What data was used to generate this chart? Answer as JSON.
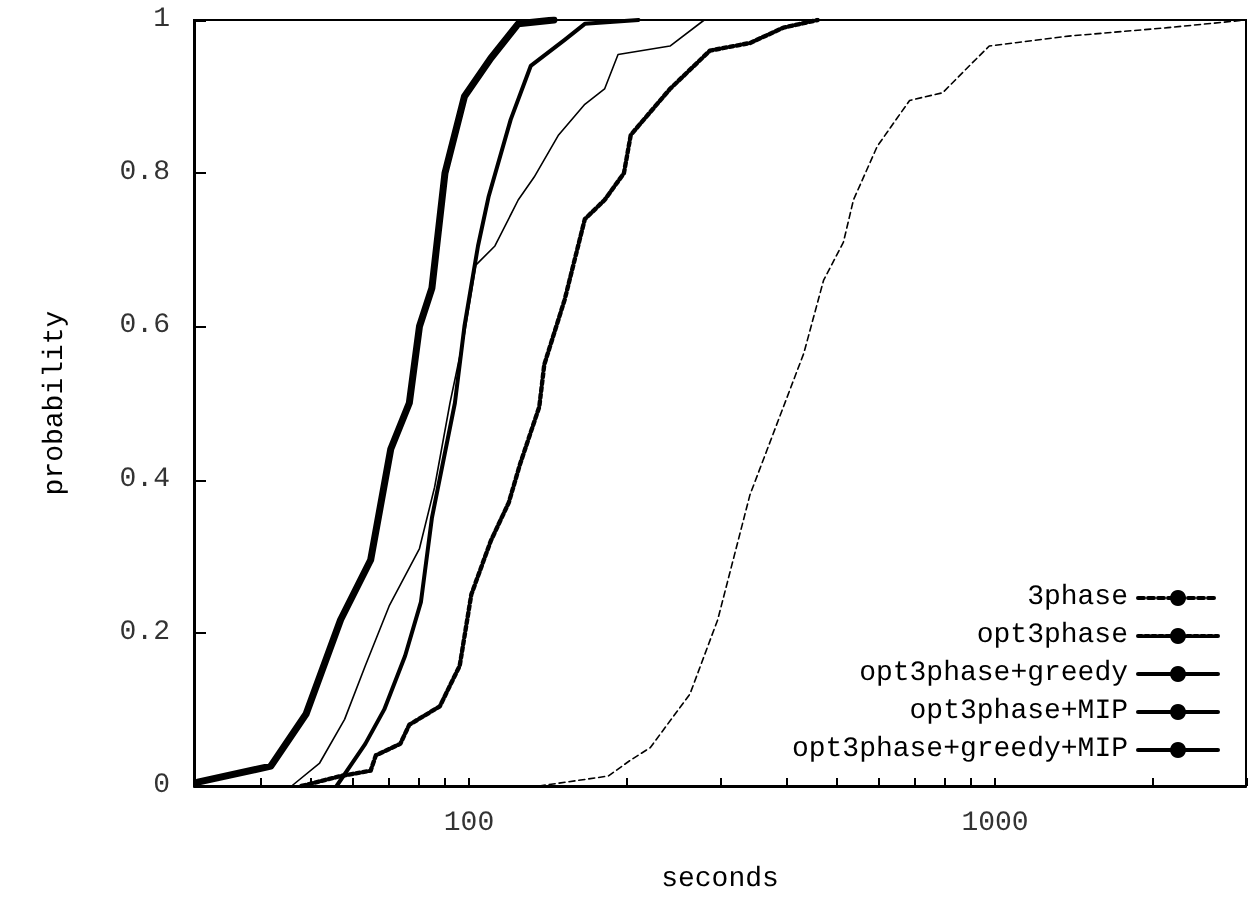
{
  "chart_data": {
    "type": "line",
    "xlabel": "seconds",
    "ylabel": "probability",
    "log": "x",
    "grid": false,
    "legend": "bottom right",
    "marker": "none",
    "xlim": [
      30,
      3000
    ],
    "ylim": [
      0,
      1
    ],
    "xticks": [
      {
        "value": 30,
        "label": null
      },
      {
        "value": 40,
        "label": null
      },
      {
        "value": 50,
        "label": null
      },
      {
        "value": 60,
        "label": null
      },
      {
        "value": 70,
        "label": null
      },
      {
        "value": 80,
        "label": null
      },
      {
        "value": 90,
        "label": null
      },
      100,
      {
        "value": 200,
        "label": null
      },
      {
        "value": 300,
        "label": null
      },
      {
        "value": 400,
        "label": null
      },
      {
        "value": 500,
        "label": null
      },
      {
        "value": 600,
        "label": null
      },
      {
        "value": 700,
        "label": null
      },
      {
        "value": 800,
        "label": null
      },
      {
        "value": 900,
        "label": null
      },
      1000,
      {
        "value": 2000,
        "label": null
      },
      {
        "value": 3000,
        "label": null
      }
    ],
    "yticks": [
      0,
      0.2,
      0.4,
      0.6,
      0.8,
      1
    ],
    "series": [
      {
        "name": "3phase",
        "color": "#000000",
        "line_style": "dashed",
        "x": [
          136,
          184,
          203,
          221,
          263,
          297,
          342,
          396,
          433,
          472,
          515,
          538,
          597,
          688,
          795,
          893,
          975,
          1380,
          2130,
          3000
        ],
        "values": [
          0,
          0.013,
          0.034,
          0.05,
          0.12,
          0.217,
          0.38,
          0.495,
          0.565,
          0.66,
          0.71,
          0.765,
          0.835,
          0.895,
          0.905,
          0.94,
          0.966,
          0.979,
          0.99,
          1
        ]
      },
      {
        "name": "opt3phase",
        "color": "#000000",
        "line_style": "dotted",
        "x": [
          48,
          57,
          65,
          66.5,
          74,
          77,
          88,
          96,
          101,
          110,
          119,
          125,
          136,
          139,
          152,
          166,
          181,
          197,
          203,
          241,
          287,
          342,
          396,
          460
        ],
        "values": [
          0,
          0.013,
          0.02,
          0.04,
          0.055,
          0.08,
          0.104,
          0.157,
          0.25,
          0.32,
          0.37,
          0.42,
          0.495,
          0.55,
          0.635,
          0.74,
          0.765,
          0.8,
          0.85,
          0.91,
          0.96,
          0.97,
          0.99,
          1
        ]
      },
      {
        "name": "opt3phase+greedy",
        "color": "#000000",
        "line_style": "solid",
        "x": [
          46,
          52,
          58,
          63.5,
          70.5,
          80.5,
          86,
          92,
          98,
          103,
          112,
          124,
          133,
          148,
          166,
          181,
          192,
          241,
          280
        ],
        "values": [
          0,
          0.03,
          0.087,
          0.157,
          0.235,
          0.31,
          0.39,
          0.5,
          0.59,
          0.68,
          0.705,
          0.765,
          0.795,
          0.85,
          0.89,
          0.91,
          0.955,
          0.966,
          1
        ]
      },
      {
        "name": "opt3phase+MIP",
        "color": "#000000",
        "line_style": "solid",
        "x": [
          56,
          63.5,
          69,
          75.6,
          81,
          85,
          94,
          98,
          104,
          109,
          120,
          131,
          152,
          166,
          210
        ],
        "values": [
          0,
          0.055,
          0.1,
          0.17,
          0.24,
          0.35,
          0.5,
          0.6,
          0.705,
          0.77,
          0.87,
          0.94,
          0.974,
          0.995,
          1
        ]
      },
      {
        "name": "opt3phase+greedy+MIP",
        "color": "#000000",
        "line_style": "solid",
        "x": [
          30.5,
          42,
          49,
          57,
          65,
          71,
          77,
          80.5,
          85,
          90,
          98,
          110,
          124,
          145
        ],
        "values": [
          0.005,
          0.026,
          0.094,
          0.217,
          0.295,
          0.44,
          0.5,
          0.6,
          0.65,
          0.8,
          0.9,
          0.95,
          0.995,
          1
        ]
      }
    ]
  }
}
